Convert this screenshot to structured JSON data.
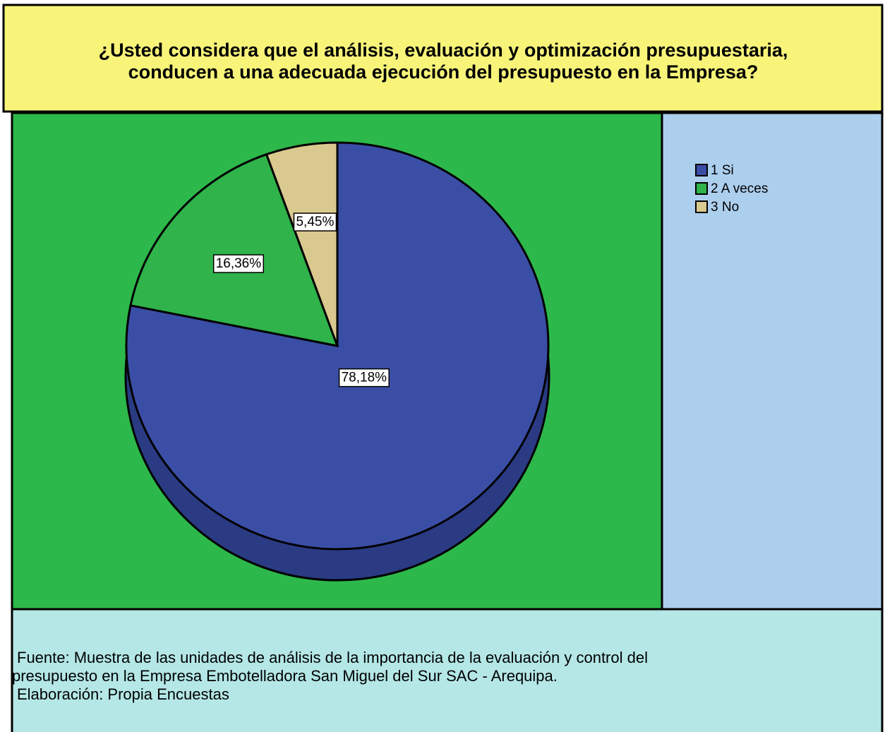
{
  "chart_data": {
    "type": "pie",
    "title": [
      "¿Usted considera que el análisis, evaluación y optimización presupuestaria,",
      "conducen a una adecuada ejecución del presupuesto en la Empresa?"
    ],
    "categories": [
      "1 Si",
      "2 A veces",
      "3 No"
    ],
    "values": [
      78.18,
      16.36,
      5.45
    ],
    "value_labels": [
      "78,18%",
      "16,36%",
      "5,45%"
    ],
    "colors": [
      "#3b4ea6",
      "#2fb34a",
      "#d9c98f"
    ],
    "legend": "top-right",
    "notes": [
      "Fuente:  Muestra de las unidades de análisis de la importancia de la  evaluación y control del",
      "presupuesto en la Empresa Embotelladora San Miguel del Sur SAC - Arequipa.",
      "Elaboración: Propia Encuestas"
    ]
  }
}
